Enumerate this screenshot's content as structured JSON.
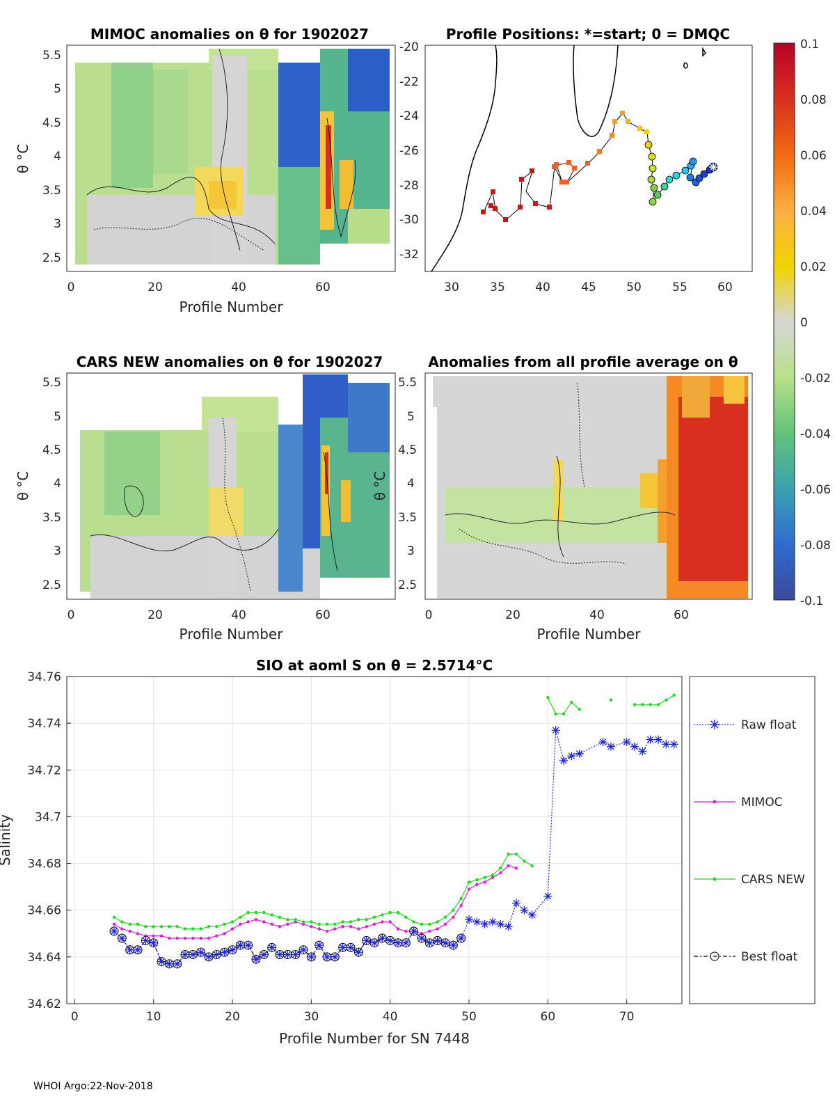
{
  "footer": "WHOI Argo:22-Nov-2018",
  "colorbar": {
    "ticks": [
      "0.1",
      "0.08",
      "0.06",
      "0.04",
      "0.02",
      "0",
      "-0.02",
      "-0.04",
      "-0.06",
      "-0.08",
      "-0.1"
    ],
    "colors": [
      "#b40426",
      "#d7301f",
      "#f16913",
      "#fdae45",
      "#f0d400",
      "#d6d6d6",
      "#b8e08a",
      "#63c27a",
      "#3aa2b0",
      "#2f6bd1",
      "#3b4a9a"
    ]
  },
  "panels": {
    "mimoc": {
      "title": "MIMOC anomalies on θ  for 1902027",
      "xlabel": "Profile Number",
      "ylabel": "θ °C",
      "xticks": [
        "0",
        "20",
        "40",
        "60"
      ],
      "yticks": [
        "5.5",
        "5",
        "4.5",
        "4",
        "3.5",
        "3",
        "2.5"
      ]
    },
    "positions": {
      "title": "Profile Positions: *=start; 0 = DMQC",
      "xticks": [
        "30",
        "35",
        "40",
        "45",
        "50",
        "55",
        "60"
      ],
      "yticks": [
        "-20",
        "-22",
        "-24",
        "-26",
        "-28",
        "-30",
        "-32"
      ]
    },
    "cars": {
      "title": "CARS NEW anomalies on θ for 1902027",
      "xlabel": "Profile Number",
      "ylabel": "θ °C",
      "xticks": [
        "0",
        "20",
        "40",
        "60"
      ],
      "yticks": [
        "5.5",
        "5",
        "4.5",
        "4",
        "3.5",
        "3",
        "2.5"
      ]
    },
    "avg": {
      "title": "Anomalies from all profile average on θ",
      "xlabel": "Profile Number",
      "ylabel": "θ °C",
      "xticks": [
        "0",
        "20",
        "40",
        "60"
      ],
      "yticks": [
        "5.5",
        "5",
        "4.5",
        "4",
        "3.5",
        "3",
        "2.5"
      ]
    }
  },
  "chart_data": {
    "type": "line",
    "title": "SIO at aoml S on θ = 2.5714°C",
    "xlabel": "Profile Number for SN 7448",
    "ylabel": "Salinity",
    "xlim": [
      -1,
      77
    ],
    "ylim": [
      34.62,
      34.76
    ],
    "xticks": [
      "0",
      "10",
      "20",
      "30",
      "40",
      "50",
      "60",
      "70"
    ],
    "yticks": [
      "34.76",
      "34.74",
      "34.72",
      "34.7",
      "34.68",
      "34.66",
      "34.64",
      "34.62"
    ],
    "grid": true,
    "legend_position": "right",
    "series": [
      {
        "name": "Raw float",
        "color": "#1f24e0",
        "x": [
          5,
          6,
          7,
          8,
          9,
          10,
          11,
          12,
          13,
          14,
          15,
          16,
          17,
          18,
          19,
          20,
          21,
          22,
          23,
          24,
          25,
          26,
          27,
          28,
          29,
          30,
          31,
          32,
          33,
          34,
          35,
          36,
          37,
          38,
          39,
          40,
          41,
          42,
          43,
          44,
          45,
          46,
          47,
          48,
          49,
          50,
          51,
          52,
          53,
          54,
          55,
          56,
          57,
          58,
          60,
          61,
          62,
          63,
          64,
          67,
          68,
          70,
          71,
          72,
          73,
          74,
          75,
          76
        ],
        "values": [
          34.651,
          34.648,
          34.643,
          34.643,
          34.647,
          34.646,
          34.638,
          34.637,
          34.637,
          34.641,
          34.641,
          34.642,
          34.64,
          34.641,
          34.642,
          34.643,
          34.645,
          34.645,
          34.639,
          34.641,
          34.644,
          34.641,
          34.641,
          34.641,
          34.643,
          34.64,
          34.645,
          34.64,
          34.64,
          34.644,
          34.644,
          34.642,
          34.647,
          34.646,
          34.648,
          34.647,
          34.646,
          34.646,
          34.651,
          34.648,
          34.646,
          34.647,
          34.646,
          34.645,
          34.648,
          34.656,
          34.655,
          34.654,
          34.655,
          34.654,
          34.653,
          34.663,
          34.66,
          34.658,
          34.666,
          34.737,
          34.724,
          34.726,
          34.727,
          34.732,
          34.73,
          34.732,
          34.73,
          34.728,
          34.733,
          34.733,
          34.731,
          34.731
        ]
      },
      {
        "name": "MIMOC",
        "color": "#e31be3",
        "x": [
          5,
          6,
          7,
          8,
          9,
          10,
          11,
          12,
          13,
          14,
          15,
          16,
          17,
          18,
          19,
          20,
          21,
          22,
          23,
          24,
          25,
          26,
          27,
          28,
          29,
          30,
          31,
          32,
          33,
          34,
          35,
          36,
          37,
          38,
          39,
          40,
          41,
          42,
          43,
          44,
          45,
          46,
          47,
          48,
          49,
          50,
          51,
          52,
          53,
          54,
          55,
          56
        ],
        "values": [
          34.654,
          34.652,
          34.651,
          34.65,
          34.649,
          34.649,
          34.649,
          34.648,
          34.648,
          34.648,
          34.648,
          34.648,
          34.648,
          34.649,
          34.65,
          34.652,
          34.654,
          34.655,
          34.656,
          34.655,
          34.654,
          34.653,
          34.654,
          34.655,
          34.654,
          34.653,
          34.652,
          34.651,
          34.652,
          34.653,
          34.653,
          34.652,
          34.653,
          34.654,
          34.655,
          34.655,
          34.652,
          34.651,
          34.651,
          34.65,
          34.651,
          34.652,
          34.654,
          34.657,
          34.662,
          34.669,
          34.671,
          34.672,
          34.674,
          34.676,
          34.679,
          34.678
        ]
      },
      {
        "name": "CARS NEW",
        "color": "#17e017",
        "x": [
          5,
          6,
          7,
          8,
          9,
          10,
          11,
          12,
          13,
          14,
          15,
          16,
          17,
          18,
          19,
          20,
          21,
          22,
          23,
          24,
          25,
          26,
          27,
          28,
          29,
          30,
          31,
          32,
          33,
          34,
          35,
          36,
          37,
          38,
          39,
          40,
          41,
          42,
          43,
          44,
          45,
          46,
          47,
          48,
          49,
          50,
          51,
          52,
          53,
          54,
          55,
          56,
          57,
          58,
          60,
          61,
          62,
          63,
          64,
          68,
          71,
          72,
          73,
          74,
          75,
          76
        ],
        "values": [
          34.657,
          34.655,
          34.654,
          34.654,
          34.653,
          34.653,
          34.653,
          34.653,
          34.653,
          34.652,
          34.652,
          34.652,
          34.653,
          34.653,
          34.654,
          34.655,
          34.657,
          34.659,
          34.659,
          34.659,
          34.658,
          34.657,
          34.656,
          34.656,
          34.655,
          34.655,
          34.654,
          34.654,
          34.654,
          34.655,
          34.655,
          34.656,
          34.656,
          34.657,
          34.658,
          34.659,
          34.659,
          34.657,
          34.655,
          34.654,
          34.654,
          34.655,
          34.657,
          34.66,
          34.665,
          34.672,
          34.673,
          34.674,
          34.675,
          34.678,
          34.684,
          34.684,
          34.681,
          34.679,
          34.751,
          34.744,
          34.744,
          34.749,
          34.746,
          34.75,
          34.748,
          34.748,
          34.748,
          34.748,
          34.75,
          34.752
        ]
      },
      {
        "name": "Best float",
        "color": "#000000",
        "x": [
          5,
          6,
          7,
          8,
          9,
          10,
          11,
          12,
          13,
          14,
          15,
          16,
          17,
          18,
          19,
          20,
          21,
          22,
          23,
          24,
          25,
          26,
          27,
          28,
          29,
          30,
          31,
          32,
          33,
          34,
          35,
          36,
          37,
          38,
          39,
          40,
          41,
          42,
          43,
          44,
          45,
          46,
          47,
          48,
          49
        ],
        "values": [
          34.651,
          34.648,
          34.643,
          34.643,
          34.647,
          34.646,
          34.638,
          34.637,
          34.637,
          34.641,
          34.641,
          34.642,
          34.64,
          34.641,
          34.642,
          34.643,
          34.645,
          34.645,
          34.639,
          34.641,
          34.644,
          34.641,
          34.641,
          34.641,
          34.643,
          34.64,
          34.645,
          34.64,
          34.64,
          34.644,
          34.644,
          34.642,
          34.647,
          34.646,
          34.648,
          34.647,
          34.646,
          34.646,
          34.651,
          34.648,
          34.646,
          34.647,
          34.646,
          34.645,
          34.648
        ]
      }
    ]
  }
}
